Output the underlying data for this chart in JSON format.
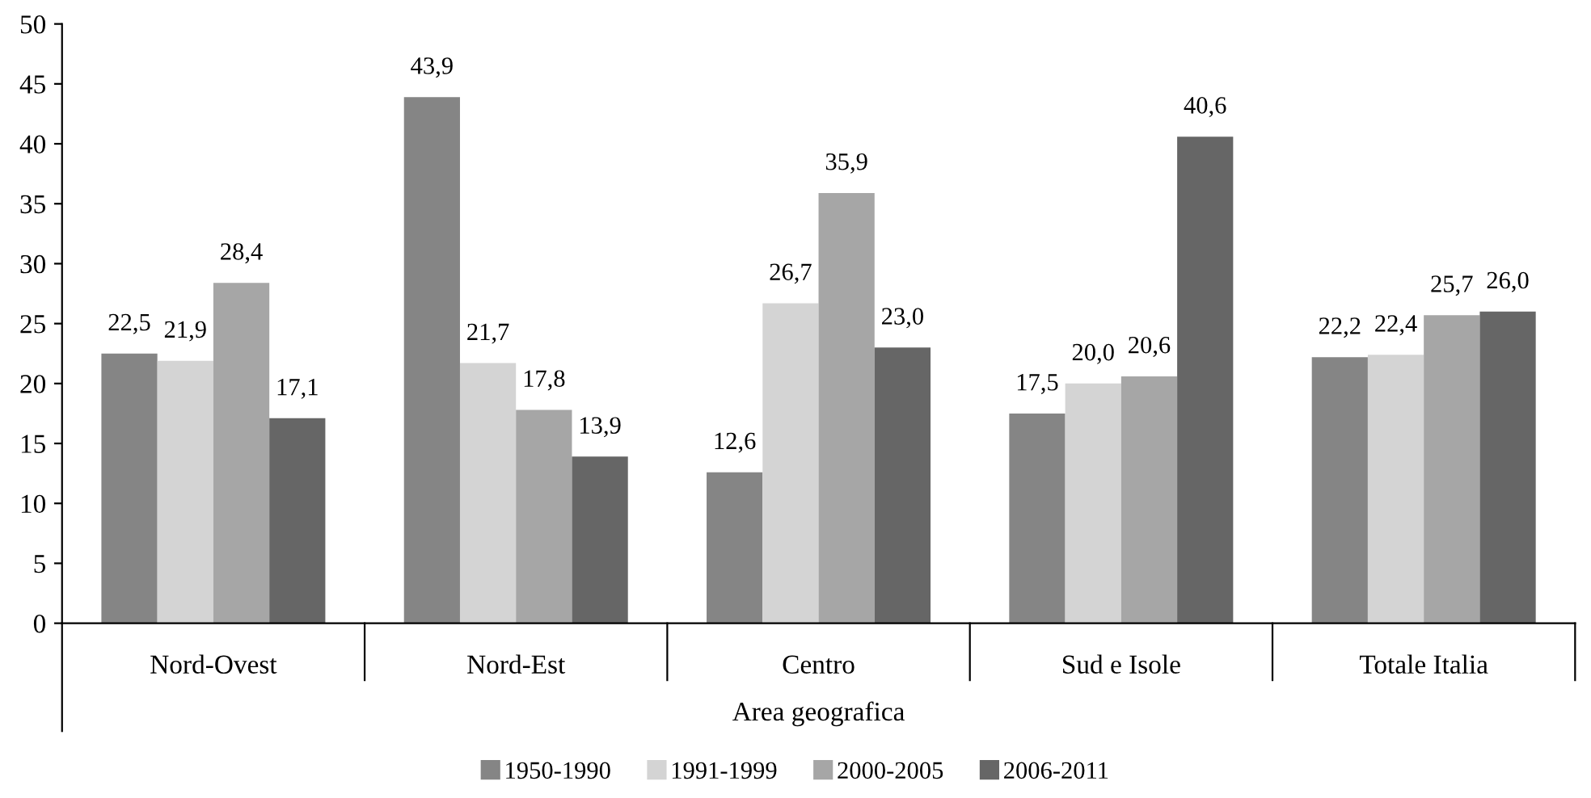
{
  "chart_data": {
    "type": "bar",
    "xlabel": "Area geografica",
    "categories": [
      "Nord-Ovest",
      "Nord-Est",
      "Centro",
      "Sud e Isole",
      "Totale Italia"
    ],
    "series": [
      {
        "name": "1950-1990",
        "color": "#858585",
        "values": [
          22.5,
          43.9,
          12.6,
          17.5,
          22.2
        ]
      },
      {
        "name": "1991-1999",
        "color": "#d4d4d4",
        "values": [
          21.9,
          21.7,
          26.7,
          20.0,
          22.4
        ]
      },
      {
        "name": "2000-2005",
        "color": "#a6a6a6",
        "values": [
          28.4,
          17.8,
          35.9,
          20.6,
          25.7
        ]
      },
      {
        "name": "2006-2011",
        "color": "#666666",
        "values": [
          17.1,
          13.9,
          23.0,
          40.6,
          26.0
        ]
      }
    ],
    "value_labels": [
      [
        "22,5",
        "43,9",
        "12,6",
        "17,5",
        "22,2"
      ],
      [
        "21,9",
        "21,7",
        "26,7",
        "20,0",
        "22,4"
      ],
      [
        "28,4",
        "17,8",
        "35,9",
        "20,6",
        "25,7"
      ],
      [
        "17,1",
        "13,9",
        "23,0",
        "40,6",
        "26,0"
      ]
    ],
    "ylim": [
      0,
      50
    ],
    "yticks": [
      0,
      5,
      10,
      15,
      20,
      25,
      30,
      35,
      40,
      45,
      50
    ],
    "grid": false,
    "legend": "bottom"
  }
}
